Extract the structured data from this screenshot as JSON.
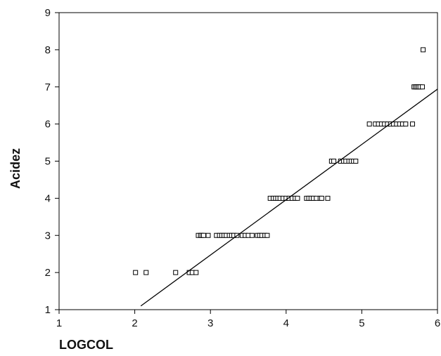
{
  "chart_data": {
    "type": "scatter",
    "xlabel": "LOGCOL",
    "ylabel": "Acidez",
    "xlim": [
      1,
      6
    ],
    "ylim": [
      1,
      9
    ],
    "x_ticks": [
      1,
      2,
      3,
      4,
      5,
      6
    ],
    "y_ticks": [
      1,
      2,
      3,
      4,
      5,
      6,
      7,
      8,
      9
    ],
    "grid": false,
    "marker": "open-square",
    "colors": {
      "axis": "#000000",
      "marker": "#000000",
      "fit_line": "#000000"
    },
    "series": [
      {
        "points": [
          [
            2.01,
            2
          ],
          [
            2.15,
            2
          ],
          [
            2.54,
            2
          ],
          [
            2.72,
            2
          ],
          [
            2.76,
            2
          ],
          [
            2.81,
            2
          ],
          [
            2.84,
            3
          ],
          [
            2.87,
            3
          ],
          [
            2.89,
            3
          ],
          [
            2.91,
            3
          ],
          [
            2.97,
            3
          ],
          [
            3.08,
            3
          ],
          [
            3.12,
            3
          ],
          [
            3.15,
            3
          ],
          [
            3.18,
            3
          ],
          [
            3.21,
            3
          ],
          [
            3.25,
            3
          ],
          [
            3.28,
            3
          ],
          [
            3.31,
            3
          ],
          [
            3.35,
            3
          ],
          [
            3.42,
            3
          ],
          [
            3.46,
            3
          ],
          [
            3.5,
            3
          ],
          [
            3.55,
            3
          ],
          [
            3.62,
            3
          ],
          [
            3.65,
            3
          ],
          [
            3.68,
            3
          ],
          [
            3.72,
            3
          ],
          [
            3.75,
            3
          ],
          [
            3.79,
            4
          ],
          [
            3.83,
            4
          ],
          [
            3.86,
            4
          ],
          [
            3.89,
            4
          ],
          [
            3.92,
            4
          ],
          [
            3.96,
            4
          ],
          [
            4.0,
            4
          ],
          [
            4.04,
            4
          ],
          [
            4.08,
            4
          ],
          [
            4.12,
            4
          ],
          [
            4.15,
            4
          ],
          [
            4.27,
            4
          ],
          [
            4.3,
            4
          ],
          [
            4.33,
            4
          ],
          [
            4.36,
            4
          ],
          [
            4.4,
            4
          ],
          [
            4.45,
            4
          ],
          [
            4.47,
            4
          ],
          [
            4.55,
            4
          ],
          [
            4.6,
            5
          ],
          [
            4.63,
            5
          ],
          [
            4.72,
            5
          ],
          [
            4.76,
            5
          ],
          [
            4.79,
            5
          ],
          [
            4.83,
            5
          ],
          [
            4.86,
            5
          ],
          [
            4.89,
            5
          ],
          [
            4.92,
            5
          ],
          [
            5.1,
            6
          ],
          [
            5.18,
            6
          ],
          [
            5.22,
            6
          ],
          [
            5.26,
            6
          ],
          [
            5.3,
            6
          ],
          [
            5.34,
            6
          ],
          [
            5.38,
            6
          ],
          [
            5.42,
            6
          ],
          [
            5.46,
            6
          ],
          [
            5.5,
            6
          ],
          [
            5.54,
            6
          ],
          [
            5.58,
            6
          ],
          [
            5.67,
            6
          ],
          [
            5.69,
            7
          ],
          [
            5.71,
            7
          ],
          [
            5.73,
            7
          ],
          [
            5.75,
            7
          ],
          [
            5.77,
            7
          ],
          [
            5.8,
            7
          ],
          [
            5.81,
            8
          ]
        ]
      }
    ],
    "fit_line": {
      "x1": 2.08,
      "y1": 1.1,
      "x2": 6.0,
      "y2": 6.94
    }
  }
}
